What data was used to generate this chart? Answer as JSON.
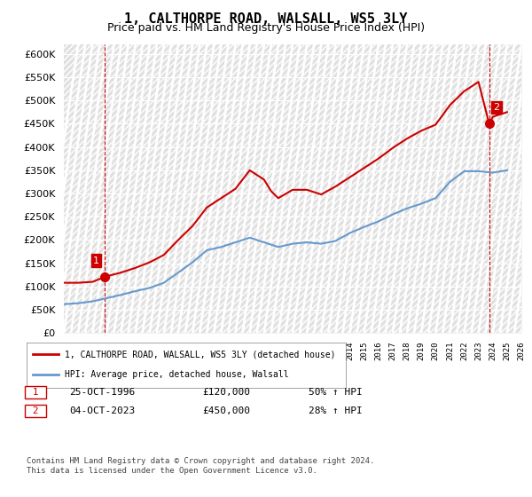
{
  "title": "1, CALTHORPE ROAD, WALSALL, WS5 3LY",
  "subtitle": "Price paid vs. HM Land Registry's House Price Index (HPI)",
  "legend_line1": "1, CALTHORPE ROAD, WALSALL, WS5 3LY (detached house)",
  "legend_line2": "HPI: Average price, detached house, Walsall",
  "footnote": "Contains HM Land Registry data © Crown copyright and database right 2024.\nThis data is licensed under the Open Government Licence v3.0.",
  "transaction1_label": "1",
  "transaction1_date": "25-OCT-1996",
  "transaction1_price": "£120,000",
  "transaction1_hpi": "50% ↑ HPI",
  "transaction2_label": "2",
  "transaction2_date": "04-OCT-2023",
  "transaction2_price": "£450,000",
  "transaction2_hpi": "28% ↑ HPI",
  "red_color": "#cc0000",
  "blue_color": "#6699cc",
  "grid_color": "#cccccc",
  "hatch_color": "#dddddd",
  "ylim_min": 0,
  "ylim_max": 620000,
  "ytick_step": 50000,
  "year_start": 1994,
  "year_end": 2026,
  "hpi_years": [
    1994,
    1995,
    1996,
    1997,
    1998,
    1999,
    2000,
    2001,
    2002,
    2003,
    2004,
    2005,
    2006,
    2007,
    2008,
    2009,
    2010,
    2011,
    2012,
    2013,
    2014,
    2015,
    2016,
    2017,
    2018,
    2019,
    2020,
    2021,
    2022,
    2023,
    2024,
    2025
  ],
  "hpi_values": [
    62000,
    64000,
    68000,
    75000,
    82000,
    90000,
    97000,
    108000,
    130000,
    152000,
    178000,
    185000,
    195000,
    205000,
    195000,
    185000,
    192000,
    195000,
    192000,
    198000,
    215000,
    228000,
    240000,
    255000,
    268000,
    278000,
    290000,
    325000,
    348000,
    348000,
    345000,
    350000
  ],
  "red_years": [
    1994,
    1995,
    1996,
    1996.83,
    1997,
    1998,
    1999,
    2000,
    2001,
    2002,
    2003,
    2004,
    2005,
    2006,
    2007,
    2008,
    2008.5,
    2009,
    2010,
    2011,
    2012,
    2013,
    2014,
    2015,
    2016,
    2017,
    2018,
    2019,
    2020,
    2021,
    2022,
    2023,
    2023.75,
    2024,
    2025
  ],
  "red_values": [
    108000,
    108000,
    110000,
    120000,
    122000,
    130000,
    140000,
    152000,
    168000,
    200000,
    230000,
    270000,
    290000,
    310000,
    350000,
    330000,
    305000,
    290000,
    308000,
    308000,
    298000,
    315000,
    335000,
    355000,
    375000,
    398000,
    418000,
    435000,
    448000,
    490000,
    520000,
    540000,
    450000,
    465000,
    475000
  ]
}
